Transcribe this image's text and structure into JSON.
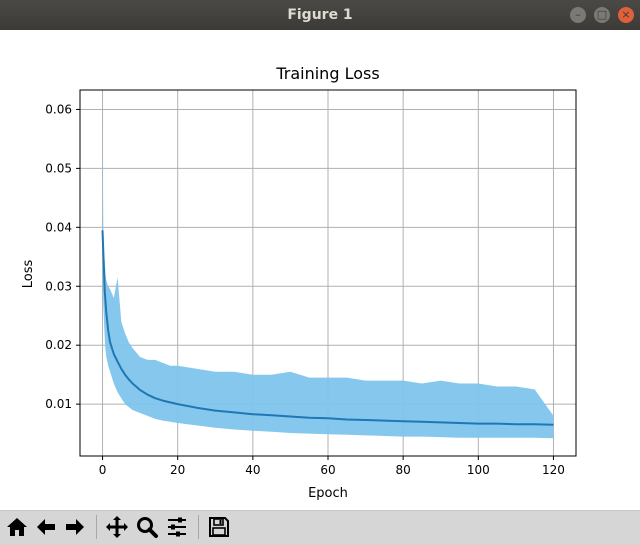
{
  "window": {
    "title": "Figure 1"
  },
  "chart_data": {
    "type": "line",
    "title": "Training Loss",
    "xlabel": "Epoch",
    "ylabel": "Loss",
    "xlim": [
      -6,
      126
    ],
    "ylim": [
      0.0012,
      0.0633
    ],
    "xticks": [
      0,
      20,
      40,
      60,
      80,
      100,
      120
    ],
    "yticks": [
      0.01,
      0.02,
      0.03,
      0.04,
      0.05,
      0.06
    ],
    "ytick_labels": [
      "0.01",
      "0.02",
      "0.03",
      "0.04",
      "0.05",
      "0.06"
    ],
    "grid": true,
    "series": [
      {
        "role": "batch-loss",
        "color": "#7fc4ec",
        "x": [
          0,
          0.1,
          0.2,
          0.4,
          0.6,
          0.8,
          1,
          1.5,
          2,
          3,
          4,
          5,
          6,
          7,
          8,
          10,
          12,
          14,
          16,
          18,
          20,
          25,
          30,
          35,
          40,
          45,
          50,
          55,
          60,
          65,
          70,
          75,
          80,
          85,
          90,
          95,
          100,
          105,
          110,
          115,
          120
        ],
        "upper": [
          0.06,
          0.048,
          0.04,
          0.036,
          0.034,
          0.032,
          0.031,
          0.03,
          0.0295,
          0.028,
          0.0315,
          0.024,
          0.022,
          0.0205,
          0.0195,
          0.018,
          0.0175,
          0.0175,
          0.017,
          0.0165,
          0.0165,
          0.016,
          0.0155,
          0.0155,
          0.015,
          0.015,
          0.0155,
          0.0145,
          0.0145,
          0.0145,
          0.014,
          0.014,
          0.014,
          0.0135,
          0.014,
          0.0135,
          0.0135,
          0.013,
          0.013,
          0.0125,
          0.008
        ],
        "lower": [
          0.033,
          0.03,
          0.027,
          0.024,
          0.021,
          0.019,
          0.018,
          0.0165,
          0.0155,
          0.0135,
          0.012,
          0.011,
          0.01,
          0.0095,
          0.009,
          0.0085,
          0.008,
          0.0075,
          0.0072,
          0.007,
          0.0068,
          0.0064,
          0.006,
          0.0057,
          0.0055,
          0.0053,
          0.0051,
          0.005,
          0.0049,
          0.0048,
          0.0047,
          0.0046,
          0.0045,
          0.0045,
          0.0044,
          0.0043,
          0.0043,
          0.0043,
          0.0043,
          0.0043,
          0.0042
        ]
      },
      {
        "role": "epoch-mean",
        "color": "#1f77b4",
        "x": [
          0,
          0.3,
          0.6,
          1,
          1.5,
          2,
          3,
          4,
          5,
          6,
          7,
          8,
          10,
          12,
          14,
          16,
          18,
          20,
          25,
          30,
          35,
          40,
          45,
          50,
          55,
          60,
          65,
          70,
          75,
          80,
          85,
          90,
          95,
          100,
          105,
          110,
          115,
          120
        ],
        "y": [
          0.0395,
          0.034,
          0.029,
          0.0255,
          0.0225,
          0.0205,
          0.0185,
          0.0172,
          0.016,
          0.015,
          0.0142,
          0.0135,
          0.0124,
          0.0116,
          0.011,
          0.0106,
          0.0103,
          0.01,
          0.0094,
          0.0089,
          0.0086,
          0.0083,
          0.0081,
          0.0079,
          0.0077,
          0.0076,
          0.0074,
          0.0073,
          0.0072,
          0.0071,
          0.007,
          0.0069,
          0.0068,
          0.0067,
          0.0067,
          0.0066,
          0.0066,
          0.0065
        ]
      }
    ]
  },
  "toolbar": {
    "buttons": [
      {
        "name": "home-icon"
      },
      {
        "name": "back-arrow-icon"
      },
      {
        "name": "forward-arrow-icon"
      },
      {
        "name": "pan-icon"
      },
      {
        "name": "zoom-icon"
      },
      {
        "name": "configure-subplots-icon"
      },
      {
        "name": "save-icon"
      }
    ]
  }
}
